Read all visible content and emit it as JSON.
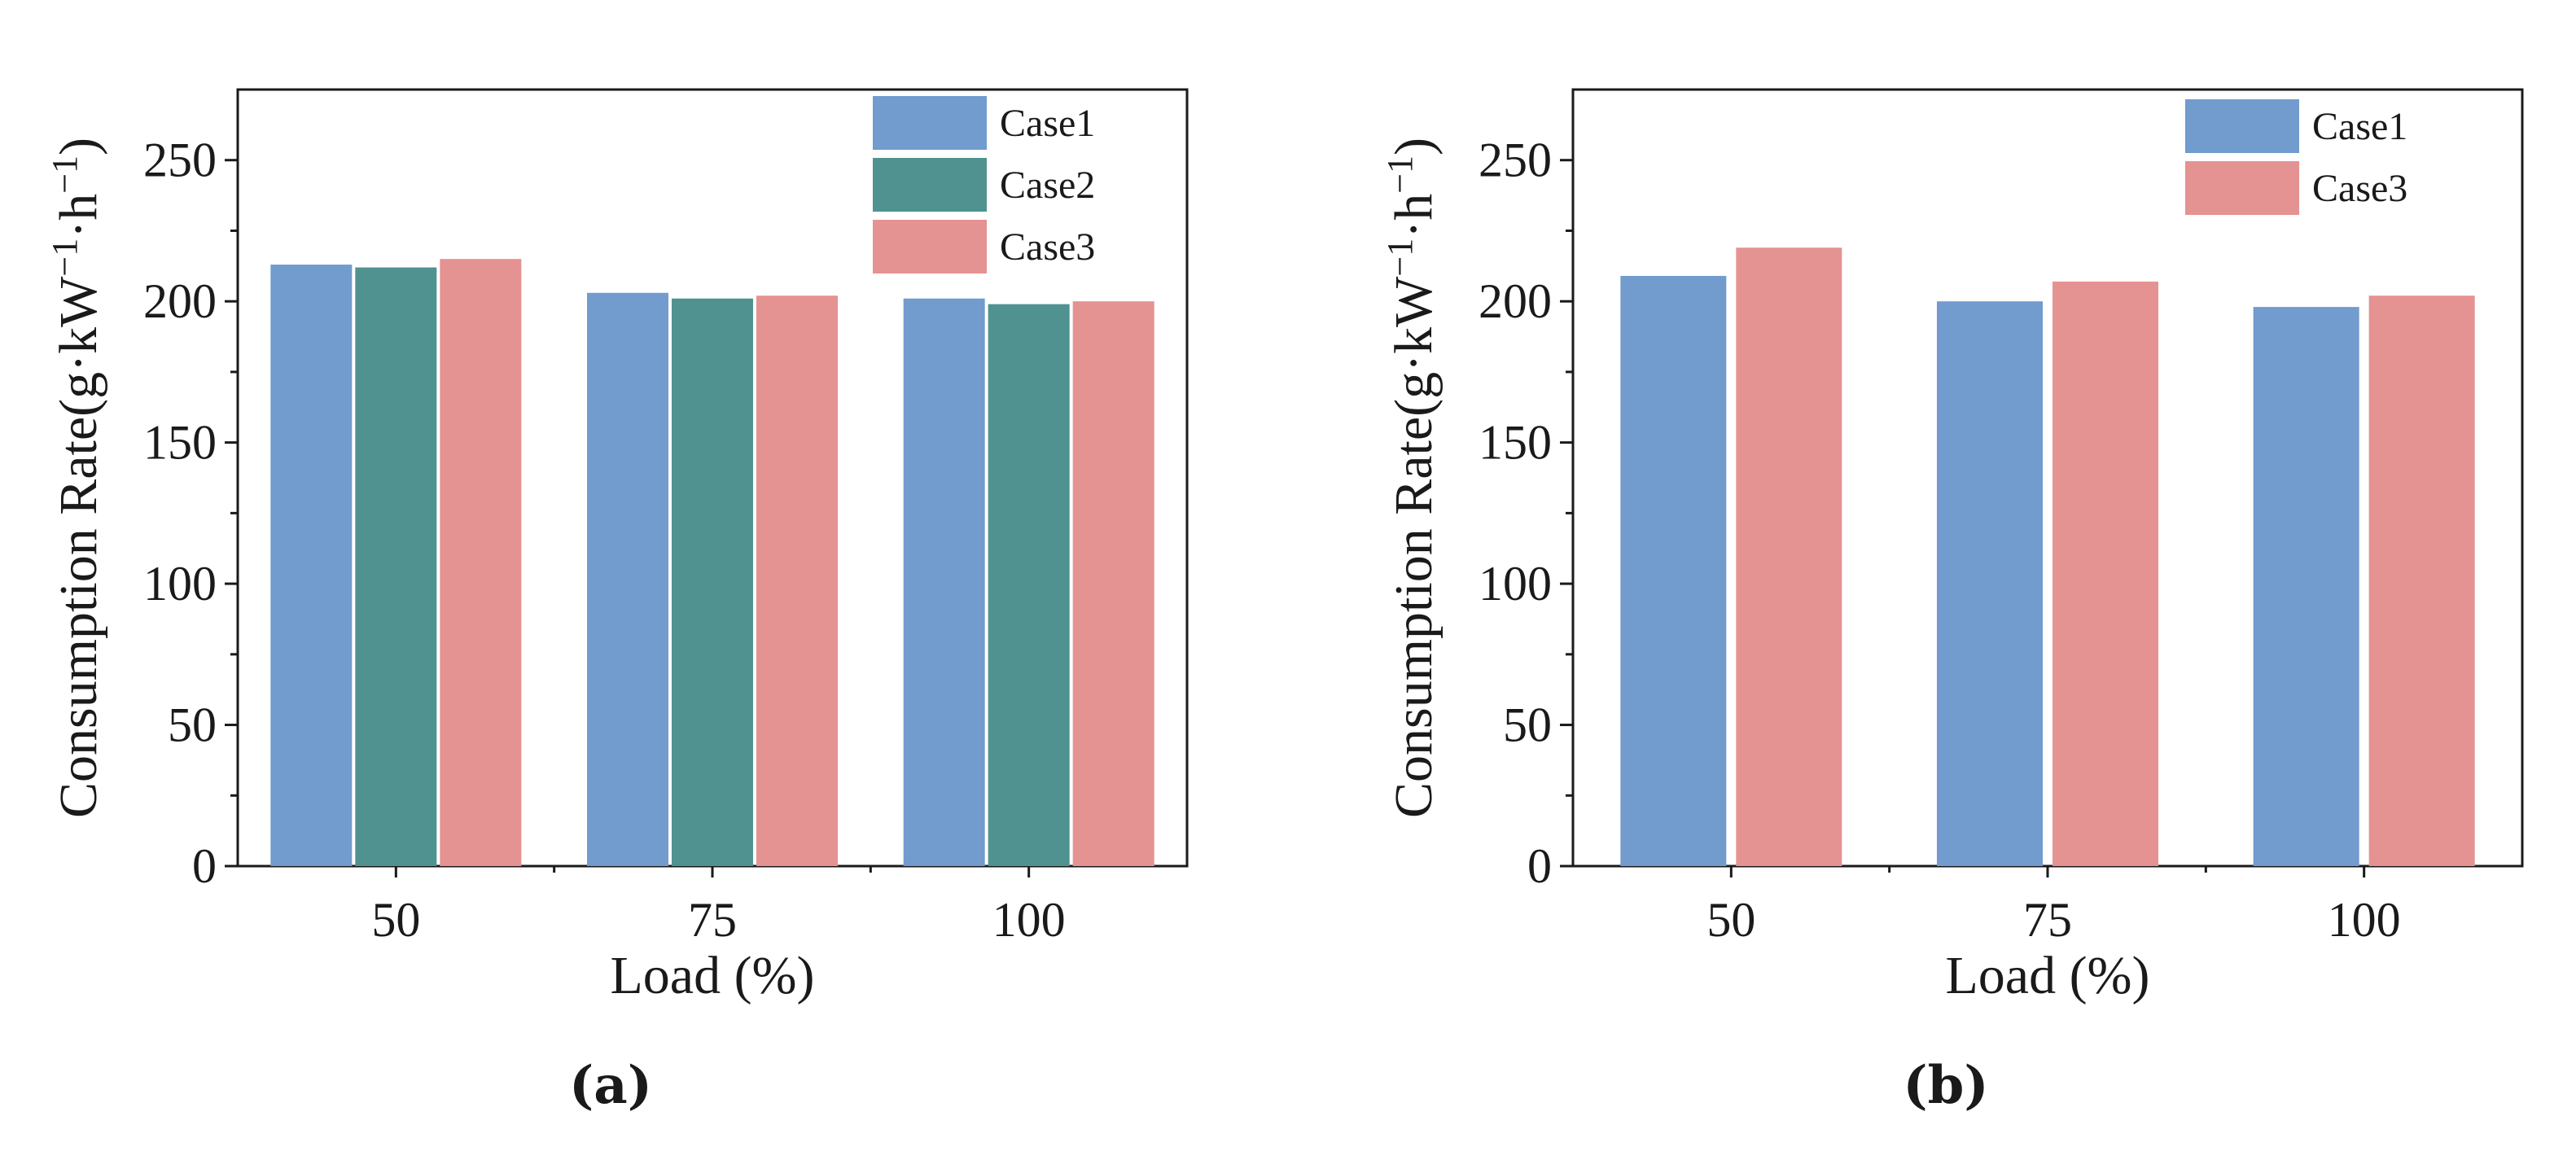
{
  "chart_data": [
    {
      "type": "bar",
      "panel_label": "(a)",
      "categories": [
        "50",
        "75",
        "100"
      ],
      "series": [
        {
          "name": "Case1",
          "color": "#729bce",
          "values": [
            213,
            203,
            201
          ]
        },
        {
          "name": "Case2",
          "color": "#4f9290",
          "values": [
            212,
            201,
            199
          ]
        },
        {
          "name": "Case3",
          "color": "#e59292",
          "values": [
            215,
            202,
            200
          ]
        }
      ],
      "xlabel": "Load (%)",
      "ylabel_main": "Consumption Rate(g·kW",
      "ylabel_sup1": "−1",
      "ylabel_mid": "·h",
      "ylabel_sup2": "−1",
      "ylabel_end": ")",
      "ylim": [
        0,
        275
      ],
      "yticks": [
        "0",
        "50",
        "100",
        "150",
        "200",
        "250"
      ],
      "legend_position": "top-right",
      "grid": false
    },
    {
      "type": "bar",
      "panel_label": "(b)",
      "categories": [
        "50",
        "75",
        "100"
      ],
      "series": [
        {
          "name": "Case1",
          "color": "#729bce",
          "values": [
            209,
            200,
            198
          ]
        },
        {
          "name": "Case3",
          "color": "#e59292",
          "values": [
            219,
            207,
            202
          ]
        }
      ],
      "xlabel": "Load (%)",
      "ylabel_main": "Consumption Rate(g·kW",
      "ylabel_sup1": "−1",
      "ylabel_mid": "·h",
      "ylabel_sup2": "−1",
      "ylabel_end": ")",
      "ylim": [
        0,
        275
      ],
      "yticks": [
        "0",
        "50",
        "100",
        "150",
        "200",
        "250"
      ],
      "legend_position": "top-right",
      "grid": false
    }
  ]
}
